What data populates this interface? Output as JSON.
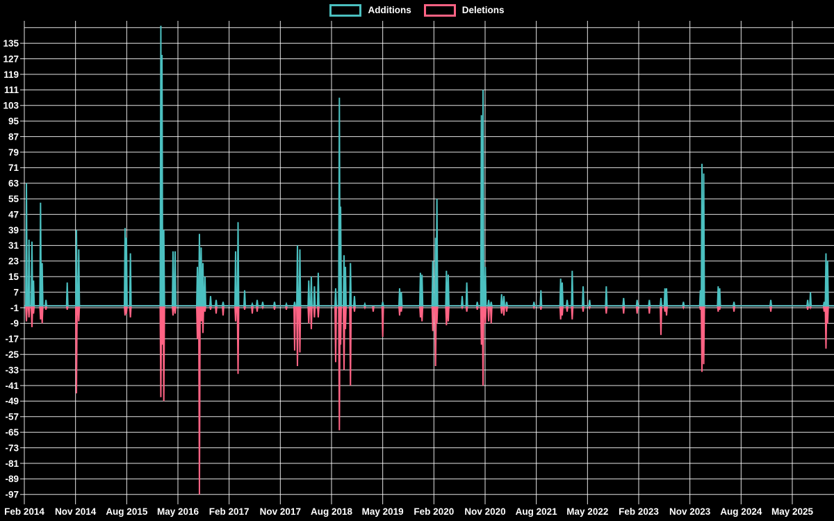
{
  "legend": [
    {
      "label": "Additions",
      "color": "#4bc0c0"
    },
    {
      "label": "Deletions",
      "color": "#ff6384"
    }
  ],
  "colors": {
    "background": "#000000",
    "grid": "#ffffff",
    "text": "#ffffff",
    "additions": "#4bc0c0",
    "deletions": "#ff6384"
  },
  "chart_data": {
    "type": "line",
    "title": "",
    "xlabel": "",
    "ylabel": "",
    "legend_position": "top-center",
    "grid": true,
    "baseline_value": 0,
    "ylim": [
      -100,
      146
    ],
    "y_tick_step": 8,
    "y_ticks": [
      135,
      127,
      119,
      111,
      103,
      95,
      87,
      79,
      71,
      63,
      55,
      47,
      39,
      31,
      23,
      15,
      7,
      -1,
      -9,
      -17,
      -25,
      -33,
      -41,
      -49,
      -57,
      -65,
      -73,
      -81,
      -89,
      -97
    ],
    "y_grid_extra_top": 143,
    "x_tick_labels": [
      "Feb 2014",
      "Nov 2014",
      "Aug 2015",
      "May 2016",
      "Feb 2017",
      "Nov 2017",
      "Aug 2018",
      "May 2019",
      "Feb 2020",
      "Nov 2020",
      "Aug 2021",
      "May 2022",
      "Feb 2023",
      "Nov 2023",
      "Aug 2024",
      "May 2025"
    ],
    "x_months_per_tick": 9,
    "x_total_months": 142,
    "note": "Sparse spike series: events are [months_since_Feb_2014, additions, deletions, approx_date]; both series are 0 between events.",
    "events": [
      [
        0.37,
        63,
        -8,
        "Feb 2014"
      ],
      [
        0.82,
        34,
        -6,
        "Mar 2014"
      ],
      [
        1.34,
        33,
        -11,
        "Mar 2014"
      ],
      [
        1.62,
        13,
        -4,
        "Apr 2014"
      ],
      [
        2.85,
        53,
        -7,
        "May 2014"
      ],
      [
        3.14,
        22,
        -9,
        "Jun 2014"
      ],
      [
        3.8,
        3,
        -2,
        "Jun 2014"
      ],
      [
        7.54,
        12,
        -2,
        "Sep 2014"
      ],
      [
        9.16,
        39,
        -45,
        "Nov 2014"
      ],
      [
        9.57,
        29,
        -8,
        "Nov 2014"
      ],
      [
        17.71,
        40,
        -5,
        "Jul 2015"
      ],
      [
        17.95,
        35,
        -4,
        "Aug 2015"
      ],
      [
        18.65,
        27,
        -6,
        "Aug 2015"
      ],
      [
        24.0,
        144,
        -47,
        "Feb 2016"
      ],
      [
        24.2,
        129,
        -20,
        "Feb 2016"
      ],
      [
        24.52,
        39,
        -49,
        "Mar 2016"
      ],
      [
        26.14,
        28,
        -5,
        "Apr 2016"
      ],
      [
        26.51,
        28,
        -4,
        "May 2016"
      ],
      [
        30.42,
        20,
        -17,
        "Aug 2016"
      ],
      [
        30.78,
        37,
        -97,
        "Sep 2016"
      ],
      [
        31.09,
        30,
        -8,
        "Sep 2016"
      ],
      [
        31.4,
        22,
        -14,
        "Sep 2016"
      ],
      [
        31.76,
        15,
        -3,
        "Oct 2016"
      ],
      [
        32.74,
        5,
        -2,
        "Oct 2016"
      ],
      [
        33.72,
        3,
        -4,
        "Dec 2016"
      ],
      [
        34.94,
        2,
        -5,
        "Jan 2017"
      ],
      [
        37.14,
        28,
        -8,
        "Mar 2017"
      ],
      [
        37.57,
        43,
        -35,
        "Apr 2017"
      ],
      [
        38.73,
        8,
        -2,
        "May 2017"
      ],
      [
        40.07,
        1,
        -4,
        "Jun 2017"
      ],
      [
        40.93,
        3,
        -3,
        "Jul 2017"
      ],
      [
        41.9,
        2,
        -1,
        "Aug 2017"
      ],
      [
        43.98,
        2,
        -2,
        "Oct 2017"
      ],
      [
        46.06,
        1,
        -2,
        "Dec 2017"
      ],
      [
        47.52,
        2,
        -23,
        "Jan 2018"
      ],
      [
        48.01,
        31,
        -31,
        "Feb 2018"
      ],
      [
        48.44,
        29,
        -24,
        "Mar 2018"
      ],
      [
        50.0,
        13,
        -9,
        "Apr 2018"
      ],
      [
        50.45,
        15,
        -12,
        "May 2018"
      ],
      [
        51.0,
        10,
        -6,
        "May 2018"
      ],
      [
        51.67,
        17,
        -6,
        "Jun 2018"
      ],
      [
        54.73,
        9,
        -29,
        "Aug 2018"
      ],
      [
        55.38,
        107,
        -64,
        "Sep 2018"
      ],
      [
        55.6,
        51,
        -20,
        "Oct 2018"
      ],
      [
        56.2,
        26,
        -33,
        "Oct 2018"
      ],
      [
        56.45,
        20,
        -12,
        "Nov 2018"
      ],
      [
        57.33,
        22,
        -41,
        "Dec 2018"
      ],
      [
        58.03,
        5,
        -3,
        "Dec 2018"
      ],
      [
        59.86,
        1,
        -1,
        "Feb 2019"
      ],
      [
        61.33,
        0,
        -3,
        "Mar 2019"
      ],
      [
        63.0,
        2,
        -16,
        "May 2019"
      ],
      [
        65.97,
        9,
        -5,
        "Aug 2019"
      ],
      [
        66.27,
        7,
        -3,
        "Aug 2019"
      ],
      [
        69.63,
        17,
        -6,
        "Nov 2019"
      ],
      [
        69.91,
        16,
        -8,
        "Dec 2019"
      ],
      [
        71.8,
        23,
        -13,
        "Jan 2020"
      ],
      [
        72.29,
        35,
        -31,
        "Feb 2020"
      ],
      [
        72.53,
        55,
        -9,
        "Feb 2020"
      ],
      [
        74.2,
        18,
        -10,
        "Apr 2020"
      ],
      [
        74.52,
        16,
        -8,
        "Apr 2020"
      ],
      [
        76.97,
        5,
        -1,
        "Jul 2020"
      ],
      [
        77.78,
        12,
        -3,
        "Aug 2020"
      ],
      [
        79.62,
        2,
        -2,
        "Sep 2020"
      ],
      [
        80.35,
        98,
        -20,
        "Oct 2020"
      ],
      [
        80.64,
        111,
        -41,
        "Nov 2020"
      ],
      [
        81.04,
        20,
        -9,
        "Nov 2020"
      ],
      [
        81.62,
        3,
        -8,
        "Dec 2020"
      ],
      [
        82.07,
        2,
        -9,
        "Dec 2020"
      ],
      [
        83.9,
        6,
        -4,
        "Feb 2021"
      ],
      [
        84.3,
        5,
        -5,
        "Feb 2021"
      ],
      [
        84.79,
        2,
        -3,
        "Mar 2021"
      ],
      [
        89.59,
        2,
        -1,
        "Jul 2021"
      ],
      [
        90.81,
        8,
        -2,
        "Sep 2021"
      ],
      [
        94.28,
        14,
        -7,
        "Dec 2021"
      ],
      [
        94.56,
        12,
        -5,
        "Dec 2021"
      ],
      [
        95.42,
        3,
        -3,
        "Jan 2022"
      ],
      [
        96.31,
        18,
        -7,
        "Feb 2022"
      ],
      [
        98.23,
        10,
        -3,
        "Apr 2022"
      ],
      [
        99.37,
        3,
        -1,
        "May 2022"
      ],
      [
        102.3,
        10,
        -4,
        "Aug 2022"
      ],
      [
        105.35,
        4,
        -4,
        "Nov 2022"
      ],
      [
        107.72,
        3,
        -4,
        "Jan 2023"
      ],
      [
        109.87,
        3,
        -4,
        "Apr 2023"
      ],
      [
        111.91,
        4,
        -15,
        "Jun 2023"
      ],
      [
        112.61,
        9,
        -3,
        "Jul 2023"
      ],
      [
        112.89,
        9,
        -5,
        "Aug 2023"
      ],
      [
        115.86,
        2,
        -1,
        "Oct 2023"
      ],
      [
        118.84,
        8,
        -2,
        "Dec 2023"
      ],
      [
        119.12,
        73,
        -34,
        "Jan 2024"
      ],
      [
        119.43,
        68,
        -30,
        "Jan 2024"
      ],
      [
        121.97,
        10,
        -3,
        "Apr 2024"
      ],
      [
        122.24,
        9,
        -2,
        "Apr 2024"
      ],
      [
        124.75,
        2,
        -3,
        "Jul 2024"
      ],
      [
        131.22,
        3,
        -3,
        "Jan 2025"
      ],
      [
        137.7,
        3,
        -2,
        "Jul 2025"
      ],
      [
        138.19,
        7,
        -1,
        "Aug 2025"
      ],
      [
        140.6,
        2,
        -3,
        "Oct 2025"
      ],
      [
        140.92,
        27,
        -22,
        "Nov 2025"
      ],
      [
        141.21,
        23,
        -9,
        "Nov 2025"
      ]
    ],
    "series": [
      {
        "name": "Additions",
        "color": "#4bc0c0",
        "values_from": "events[1]"
      },
      {
        "name": "Deletions",
        "color": "#ff6384",
        "values_from": "events[2]"
      }
    ]
  }
}
